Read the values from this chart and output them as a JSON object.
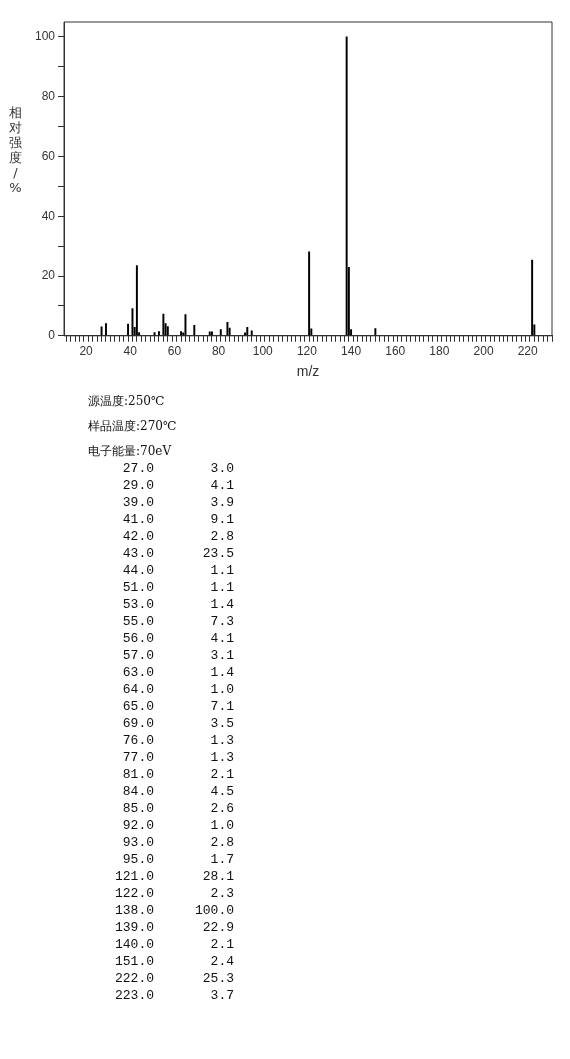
{
  "chart_data": [
    {
      "type": "bar",
      "xlabel": "m/z",
      "ylabel": "相对强度/%",
      "x": [
        27,
        29,
        39,
        41,
        42,
        43,
        44,
        51,
        53,
        55,
        56,
        57,
        63,
        64,
        65,
        69,
        76,
        77,
        81,
        84,
        85,
        92,
        93,
        95,
        121,
        122,
        138,
        139,
        140,
        151,
        222,
        223
      ],
      "values": [
        3.0,
        4.1,
        3.9,
        9.1,
        2.8,
        23.5,
        1.1,
        1.1,
        1.4,
        7.3,
        4.1,
        3.1,
        1.4,
        1.0,
        7.1,
        3.5,
        1.3,
        1.3,
        2.1,
        4.5,
        2.6,
        1.0,
        2.8,
        1.7,
        28.1,
        2.3,
        100.0,
        22.9,
        2.1,
        2.4,
        25.3,
        3.7
      ],
      "color": "#000000",
      "xlim": [
        10,
        231
      ],
      "xticks": [
        {
          "value": 12,
          "label": null
        },
        {
          "value": 14,
          "label": null
        },
        {
          "value": 16,
          "label": null
        },
        {
          "value": 18,
          "label": null
        },
        20,
        {
          "value": 22,
          "label": null
        },
        {
          "value": 24,
          "label": null
        },
        {
          "value": 26,
          "label": null
        },
        {
          "value": 28,
          "label": null
        },
        {
          "value": 30,
          "label": null
        },
        {
          "value": 32,
          "label": null
        },
        {
          "value": 34,
          "label": null
        },
        {
          "value": 36,
          "label": null
        },
        {
          "value": 38,
          "label": null
        },
        40,
        {
          "value": 42,
          "label": null
        },
        {
          "value": 44,
          "label": null
        },
        {
          "value": 46,
          "label": null
        },
        {
          "value": 48,
          "label": null
        },
        {
          "value": 50,
          "label": null
        },
        {
          "value": 52,
          "label": null
        },
        {
          "value": 54,
          "label": null
        },
        {
          "value": 56,
          "label": null
        },
        {
          "value": 58,
          "label": null
        },
        60,
        {
          "value": 62,
          "label": null
        },
        {
          "value": 64,
          "label": null
        },
        {
          "value": 66,
          "label": null
        },
        {
          "value": 68,
          "label": null
        },
        {
          "value": 70,
          "label": null
        },
        {
          "value": 72,
          "label": null
        },
        {
          "value": 74,
          "label": null
        },
        {
          "value": 76,
          "label": null
        },
        {
          "value": 78,
          "label": null
        },
        80,
        {
          "value": 82,
          "label": null
        },
        {
          "value": 84,
          "label": null
        },
        {
          "value": 86,
          "label": null
        },
        {
          "value": 88,
          "label": null
        },
        {
          "value": 90,
          "label": null
        },
        {
          "value": 92,
          "label": null
        },
        {
          "value": 94,
          "label": null
        },
        {
          "value": 96,
          "label": null
        },
        {
          "value": 98,
          "label": null
        },
        100,
        {
          "value": 102,
          "label": null
        },
        {
          "value": 104,
          "label": null
        },
        {
          "value": 106,
          "label": null
        },
        {
          "value": 108,
          "label": null
        },
        {
          "value": 110,
          "label": null
        },
        {
          "value": 112,
          "label": null
        },
        {
          "value": 114,
          "label": null
        },
        {
          "value": 116,
          "label": null
        },
        {
          "value": 118,
          "label": null
        },
        120,
        {
          "value": 122,
          "label": null
        },
        {
          "value": 124,
          "label": null
        },
        {
          "value": 126,
          "label": null
        },
        {
          "value": 128,
          "label": null
        },
        {
          "value": 130,
          "label": null
        },
        {
          "value": 132,
          "label": null
        },
        {
          "value": 134,
          "label": null
        },
        {
          "value": 136,
          "label": null
        },
        {
          "value": 138,
          "label": null
        },
        140,
        {
          "value": 142,
          "label": null
        },
        {
          "value": 144,
          "label": null
        },
        {
          "value": 146,
          "label": null
        },
        {
          "value": 148,
          "label": null
        },
        {
          "value": 150,
          "label": null
        },
        {
          "value": 152,
          "label": null
        },
        {
          "value": 154,
          "label": null
        },
        {
          "value": 156,
          "label": null
        },
        {
          "value": 158,
          "label": null
        },
        160,
        {
          "value": 162,
          "label": null
        },
        {
          "value": 164,
          "label": null
        },
        {
          "value": 166,
          "label": null
        },
        {
          "value": 168,
          "label": null
        },
        {
          "value": 170,
          "label": null
        },
        {
          "value": 172,
          "label": null
        },
        {
          "value": 174,
          "label": null
        },
        {
          "value": 176,
          "label": null
        },
        {
          "value": 178,
          "label": null
        },
        180,
        {
          "value": 182,
          "label": null
        },
        {
          "value": 184,
          "label": null
        },
        {
          "value": 186,
          "label": null
        },
        {
          "value": 188,
          "label": null
        },
        {
          "value": 190,
          "label": null
        },
        {
          "value": 192,
          "label": null
        },
        {
          "value": 194,
          "label": null
        },
        {
          "value": 196,
          "label": null
        },
        {
          "value": 198,
          "label": null
        },
        200,
        {
          "value": 202,
          "label": null
        },
        {
          "value": 204,
          "label": null
        },
        {
          "value": 206,
          "label": null
        },
        {
          "value": 208,
          "label": null
        },
        {
          "value": 210,
          "label": null
        },
        {
          "value": 212,
          "label": null
        },
        {
          "value": 214,
          "label": null
        },
        {
          "value": 216,
          "label": null
        },
        {
          "value": 218,
          "label": null
        },
        220,
        {
          "value": 222,
          "label": null
        },
        {
          "value": 224,
          "label": null
        },
        {
          "value": 226,
          "label": null
        },
        {
          "value": 228,
          "label": null
        },
        {
          "value": 230,
          "label": null
        }
      ],
      "ylim": [
        0,
        105
      ],
      "yticks": [
        0,
        {
          "value": 10,
          "label": null
        },
        20,
        {
          "value": 30,
          "label": null
        },
        40,
        {
          "value": 50,
          "label": null
        },
        60,
        {
          "value": 70,
          "label": null
        },
        80,
        {
          "value": 90,
          "label": null
        },
        100
      ],
      "grid": false,
      "legend": false
    },
    {
      "type": "other",
      "annotations": [
        "源温度:250℃",
        "样品温度:270℃",
        "电子能量:70eV"
      ],
      "categories": [
        "27.0",
        "29.0",
        "39.0",
        "41.0",
        "42.0",
        "43.0",
        "44.0",
        "51.0",
        "53.0",
        "55.0",
        "56.0",
        "57.0",
        "63.0",
        "64.0",
        "65.0",
        "69.0",
        "76.0",
        "77.0",
        "81.0",
        "84.0",
        "85.0",
        "92.0",
        "93.0",
        "95.0",
        "121.0",
        "122.0",
        "138.0",
        "139.0",
        "140.0",
        "151.0",
        "222.0",
        "223.0"
      ],
      "value_labels": [
        "3.0",
        "4.1",
        "3.9",
        "9.1",
        "2.8",
        "23.5",
        "1.1",
        "1.1",
        "1.4",
        "7.3",
        "4.1",
        "3.1",
        "1.4",
        "1.0",
        "7.1",
        "3.5",
        "1.3",
        "1.3",
        "2.1",
        "4.5",
        "2.6",
        "1.0",
        "2.8",
        "1.7",
        "28.1",
        "2.3",
        "100.0",
        "22.9",
        "2.1",
        "2.4",
        "25.3",
        "3.7"
      ]
    }
  ]
}
